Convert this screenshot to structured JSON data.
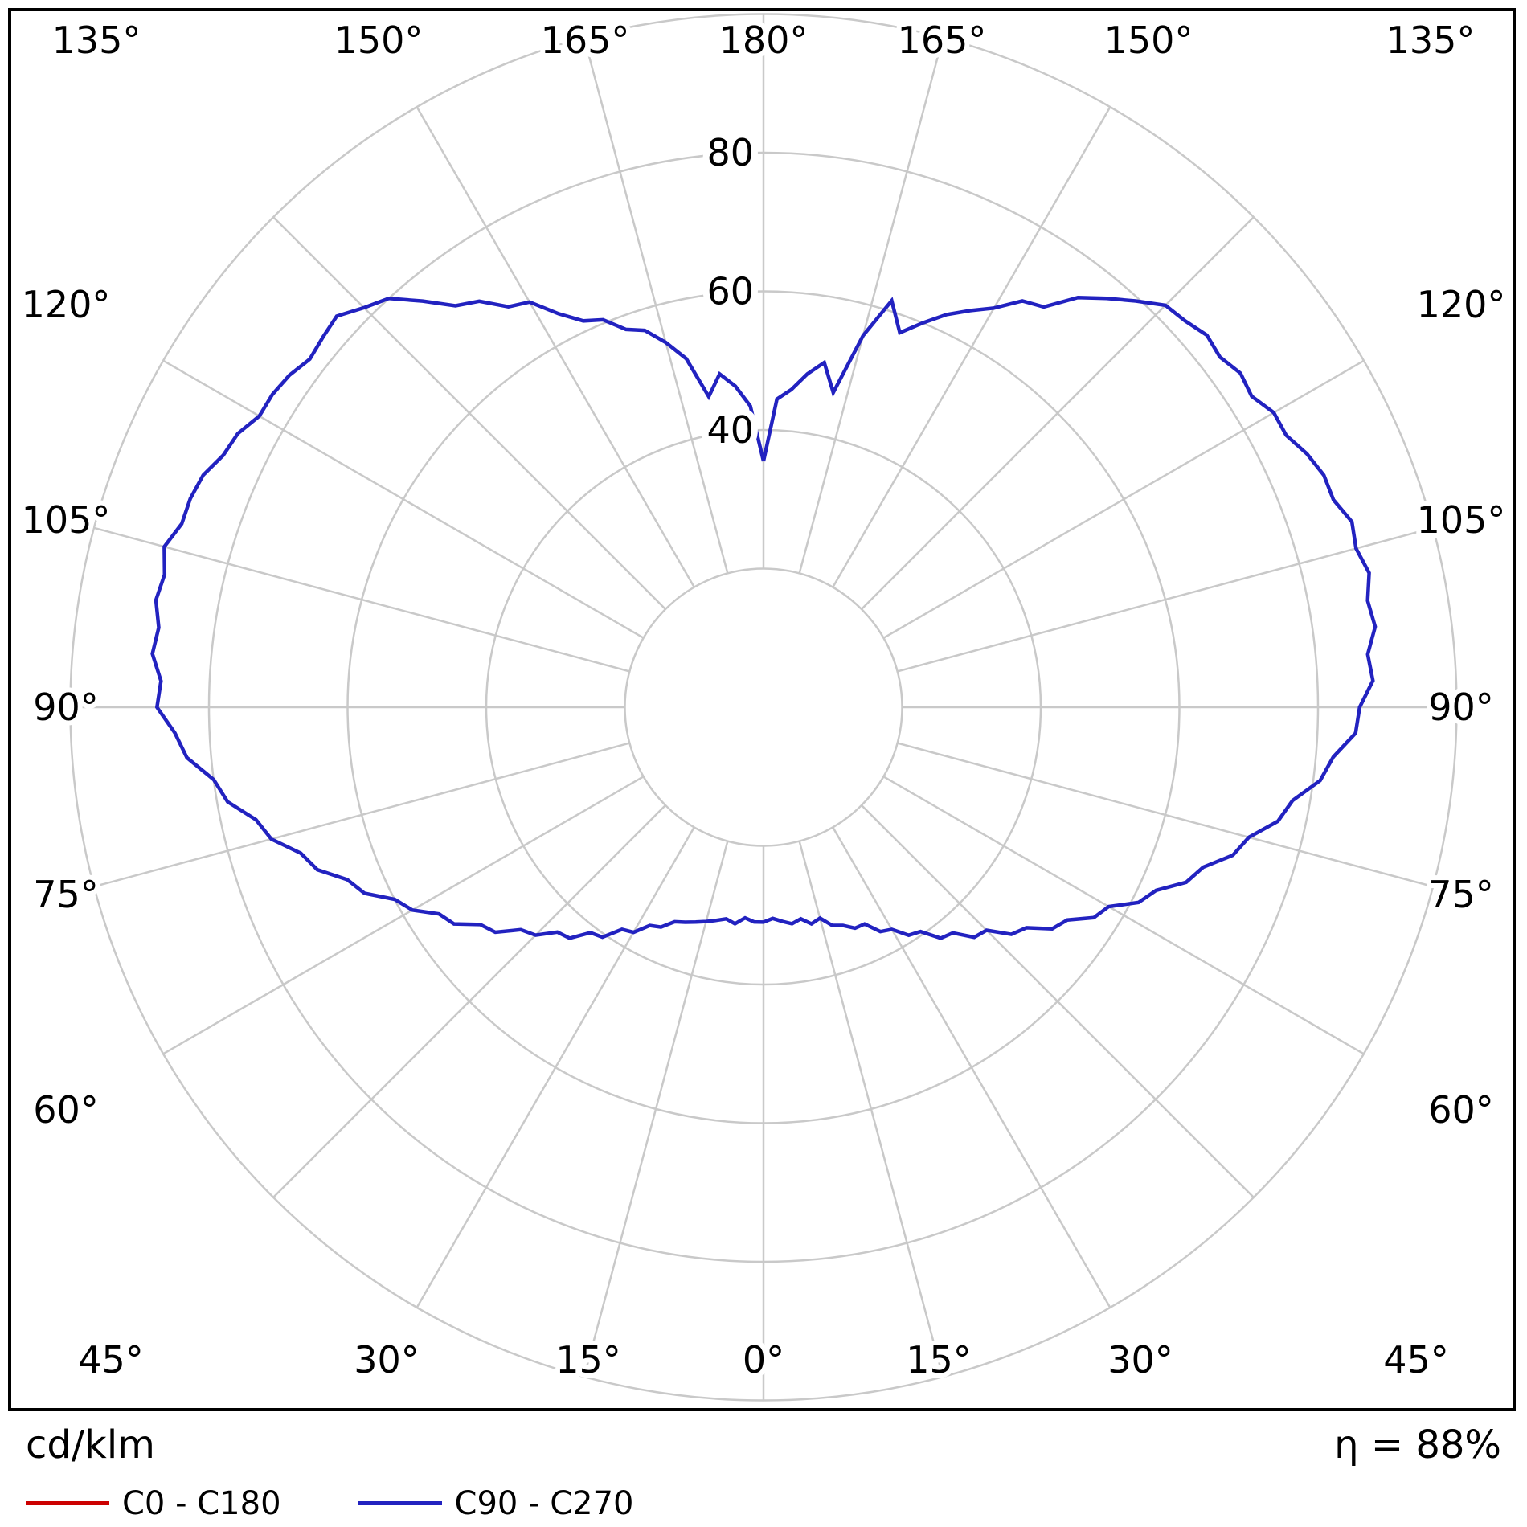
{
  "chart_data": {
    "type": "polar-line",
    "title": "Luminous intensity distribution (polar)",
    "units": "cd/klm",
    "efficiency": "η = 88%",
    "grid_color": "#c9c9c9",
    "rings": [
      20,
      40,
      60,
      80,
      100
    ],
    "radial_labels": [
      {
        "v": 40,
        "t": "40"
      },
      {
        "v": 60,
        "t": "60"
      },
      {
        "v": 80,
        "t": "80"
      }
    ],
    "spoke_step_deg": 15,
    "angle_labels": [
      {
        "a": 0,
        "t": "0°"
      },
      {
        "a": 15,
        "t": "15°"
      },
      {
        "a": -15,
        "t": "15°"
      },
      {
        "a": 30,
        "t": "30°"
      },
      {
        "a": -30,
        "t": "30°"
      },
      {
        "a": 45,
        "t": "45°"
      },
      {
        "a": -45,
        "t": "45°"
      },
      {
        "a": 60,
        "t": "60°"
      },
      {
        "a": -60,
        "t": "60°"
      },
      {
        "a": 75,
        "t": "75°"
      },
      {
        "a": -75,
        "t": "75°"
      },
      {
        "a": 90,
        "t": "90°"
      },
      {
        "a": -90,
        "t": "90°"
      },
      {
        "a": 105,
        "t": "105°"
      },
      {
        "a": -105,
        "t": "105°"
      },
      {
        "a": 120,
        "t": "120°"
      },
      {
        "a": -120,
        "t": "120°"
      },
      {
        "a": 135,
        "t": "135°"
      },
      {
        "a": -135,
        "t": "135°"
      },
      {
        "a": 150,
        "t": "150°"
      },
      {
        "a": -150,
        "t": "150°"
      },
      {
        "a": 165,
        "t": "165°"
      },
      {
        "a": -165,
        "t": "165°"
      },
      {
        "a": 180,
        "t": "180°"
      }
    ],
    "series": [
      {
        "name": "C0 - C180",
        "color": "#cc0000",
        "points": []
      },
      {
        "name": "C90 - C270",
        "color": "#2222c0",
        "points": [
          [
            -180,
            35.5
          ],
          [
            -177.5,
            43.5
          ],
          [
            -175,
            46.5
          ],
          [
            -172.5,
            48.5
          ],
          [
            -170,
            45.5
          ],
          [
            -167.5,
            51.5
          ],
          [
            -165,
            54.5
          ],
          [
            -162.5,
            57
          ],
          [
            -160,
            58
          ],
          [
            -157.5,
            60.5
          ],
          [
            -155,
            61.5
          ],
          [
            -152.5,
            64
          ],
          [
            -150,
            67.5
          ],
          [
            -147.5,
            68.5
          ],
          [
            -145,
            71.5
          ],
          [
            -142.5,
            73
          ],
          [
            -140,
            76.5
          ],
          [
            -137.5,
            80
          ],
          [
            -135,
            81.5
          ],
          [
            -132.5,
            83.5
          ],
          [
            -130,
            83
          ],
          [
            -127.5,
            82.5
          ],
          [
            -125,
            83.5
          ],
          [
            -122.5,
            84
          ],
          [
            -120,
            84
          ],
          [
            -117.5,
            85.5
          ],
          [
            -115,
            86
          ],
          [
            -112.5,
            87.5
          ],
          [
            -110,
            88
          ],
          [
            -107.5,
            88
          ],
          [
            -105,
            89.5
          ],
          [
            -102.5,
            88.5
          ],
          [
            -100,
            89
          ],
          [
            -97.5,
            88
          ],
          [
            -95,
            88.5
          ],
          [
            -92.5,
            87
          ],
          [
            -90,
            87.5
          ],
          [
            -87.5,
            85
          ],
          [
            -85,
            83.5
          ],
          [
            -82.5,
            80
          ],
          [
            -80,
            78.5
          ],
          [
            -77.5,
            75
          ],
          [
            -75,
            73.5
          ],
          [
            -72.5,
            70
          ],
          [
            -70,
            68.5
          ],
          [
            -67.5,
            65
          ],
          [
            -65,
            63.5
          ],
          [
            -62.5,
            60
          ],
          [
            -60,
            58.5
          ],
          [
            -57.5,
            55.5
          ],
          [
            -55,
            54.5
          ],
          [
            -52.5,
            51.5
          ],
          [
            -50,
            50.5
          ],
          [
            -47.5,
            47.5
          ],
          [
            -45,
            46.5
          ],
          [
            -42.5,
            44
          ],
          [
            -40,
            43.5
          ],
          [
            -37.5,
            41
          ],
          [
            -35,
            40.5
          ],
          [
            -32.5,
            38
          ],
          [
            -30,
            37.5
          ],
          [
            -27.5,
            35.5
          ],
          [
            -25,
            35
          ],
          [
            -22.5,
            33.5
          ],
          [
            -20,
            33
          ],
          [
            -17.5,
            32.5
          ],
          [
            -15,
            32
          ],
          [
            -12.5,
            31.5
          ],
          [
            -10,
            31
          ],
          [
            -7.5,
            31.5
          ],
          [
            -5,
            30.5
          ],
          [
            -2.5,
            31
          ],
          [
            0,
            31
          ],
          [
            2.5,
            30.5
          ],
          [
            5,
            31
          ],
          [
            7.5,
            31.5
          ],
          [
            10,
            31
          ],
          [
            12.5,
            32
          ],
          [
            15,
            31.5
          ],
          [
            17.5,
            33
          ],
          [
            20,
            33.5
          ],
          [
            22.5,
            34.5
          ],
          [
            25,
            34.5
          ],
          [
            27.5,
            36.5
          ],
          [
            30,
            37
          ],
          [
            32.5,
            39
          ],
          [
            35,
            39.5
          ],
          [
            37.5,
            42
          ],
          [
            40,
            42.5
          ],
          [
            42.5,
            45
          ],
          [
            45,
            45.5
          ],
          [
            47.5,
            48.5
          ],
          [
            50,
            49.5
          ],
          [
            52.5,
            52.5
          ],
          [
            55,
            53.5
          ],
          [
            57.5,
            56.5
          ],
          [
            60,
            57.5
          ],
          [
            62.5,
            61
          ],
          [
            65,
            62.5
          ],
          [
            67.5,
            66
          ],
          [
            70,
            67.5
          ],
          [
            72.5,
            71
          ],
          [
            75,
            72.5
          ],
          [
            77.5,
            76
          ],
          [
            80,
            77.5
          ],
          [
            82.5,
            81
          ],
          [
            85,
            82.5
          ],
          [
            87.5,
            85.5
          ],
          [
            90,
            86
          ],
          [
            92.5,
            88
          ],
          [
            95,
            87.5
          ],
          [
            97.5,
            89
          ],
          [
            100,
            88.5
          ],
          [
            102.5,
            89.5
          ],
          [
            105,
            88.5
          ],
          [
            107.5,
            89
          ],
          [
            110,
            87.5
          ],
          [
            112.5,
            87.5
          ],
          [
            115,
            86.5
          ],
          [
            117.5,
            85
          ],
          [
            120,
            85
          ],
          [
            122.5,
            83.5
          ],
          [
            125,
            84
          ],
          [
            127.5,
            83
          ],
          [
            130,
            83.5
          ],
          [
            132.5,
            82.5
          ],
          [
            135,
            82
          ],
          [
            137.5,
            79.5
          ],
          [
            140,
            77
          ],
          [
            142.5,
            74.5
          ],
          [
            145,
            70.5
          ],
          [
            147.5,
            69.5
          ],
          [
            150,
            66.5
          ],
          [
            152.5,
            64.5
          ],
          [
            155,
            62.5
          ],
          [
            157.5,
            60
          ],
          [
            160,
            57.5
          ],
          [
            162.5,
            61.5
          ],
          [
            165,
            55.5
          ],
          [
            167.5,
            46.5
          ],
          [
            170,
            50.5
          ],
          [
            172.5,
            48.5
          ],
          [
            175,
            46
          ],
          [
            177.5,
            44.5
          ],
          [
            180,
            35.5
          ]
        ]
      }
    ]
  },
  "footer": {
    "unit_label": "cd/klm",
    "eta_label": "η = 88%"
  }
}
